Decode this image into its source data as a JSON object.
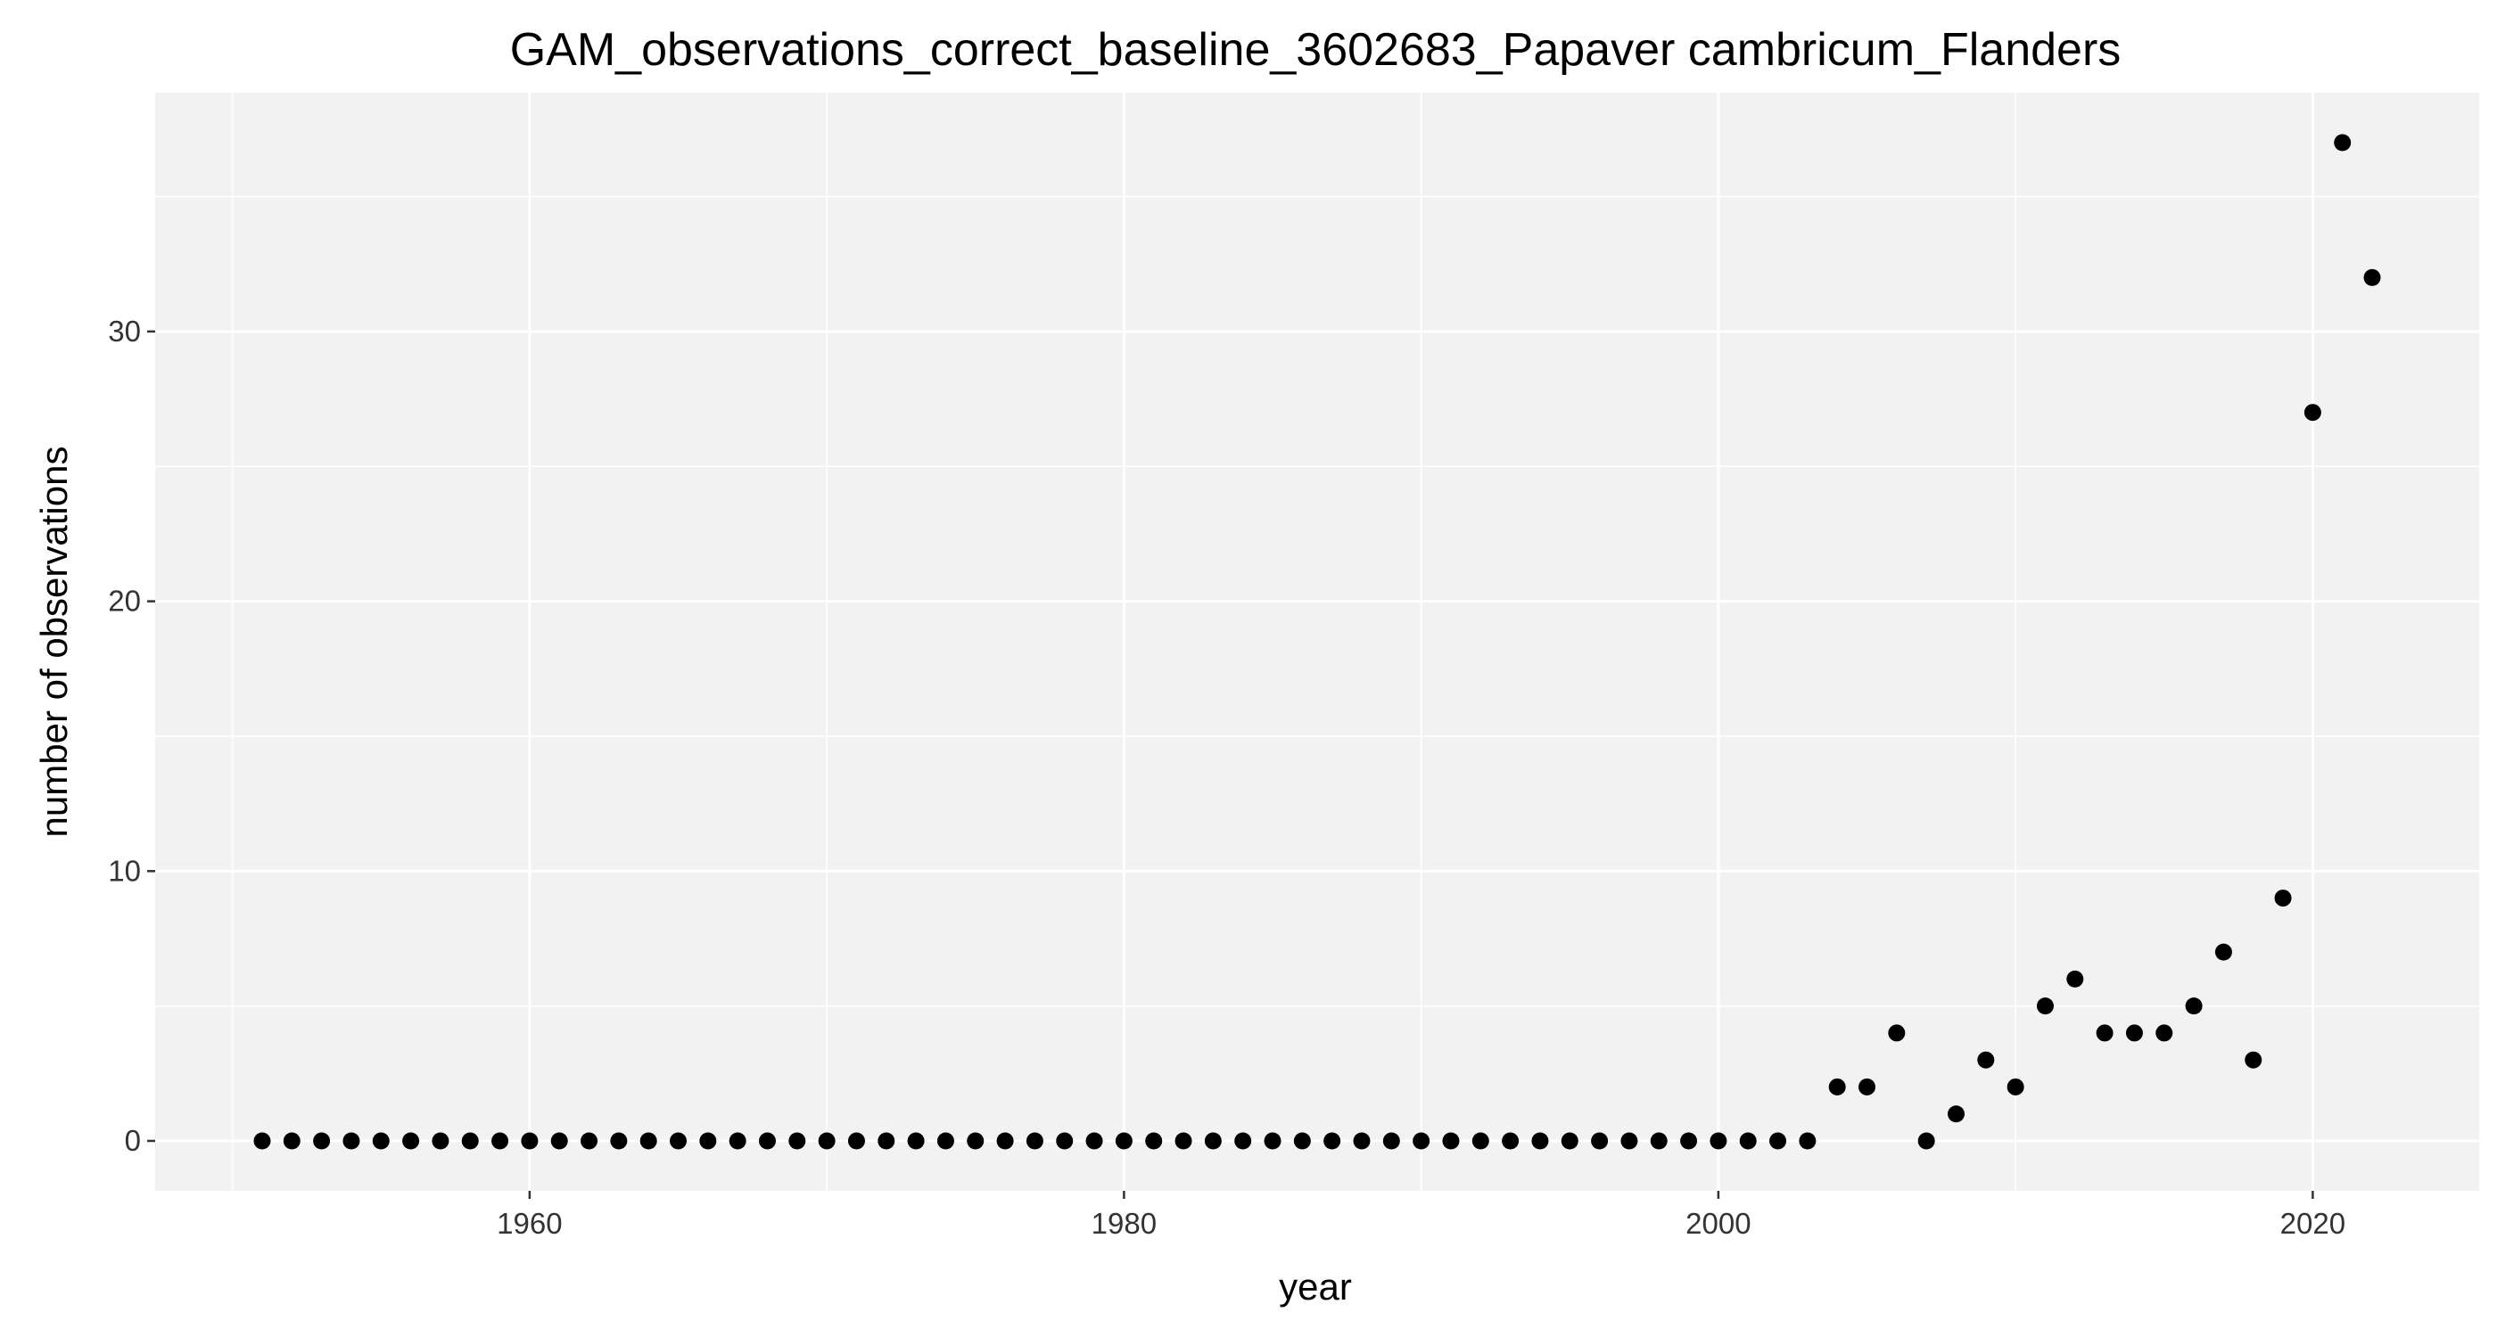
{
  "chart_data": {
    "type": "scatter",
    "title": "GAM_observations_correct_baseline_3602683_Papaver cambricum_Flanders",
    "xlabel": "year",
    "ylabel": "number of observations",
    "xlim": [
      1947.4,
      2025.6
    ],
    "ylim": [
      -1.85,
      38.85
    ],
    "x_ticks": [
      1960,
      1980,
      2000,
      2020
    ],
    "x_tick_labels": [
      "1960",
      "1980",
      "2000",
      "2020"
    ],
    "x_minor_ticks": [
      1950,
      1970,
      1990,
      2010
    ],
    "y_ticks": [
      0,
      10,
      20,
      30
    ],
    "y_tick_labels": [
      "0",
      "10",
      "20",
      "30"
    ],
    "y_minor_ticks": [
      5,
      15,
      25,
      35
    ],
    "grid": true,
    "legend": "none",
    "colors": {
      "panel": "#f2f2f2",
      "grid": "#ffffff",
      "point": "#000000"
    },
    "series": [
      {
        "x": [
          1951,
          1952,
          1953,
          1954,
          1955,
          1956,
          1957,
          1958,
          1959,
          1960,
          1961,
          1962,
          1963,
          1964,
          1965,
          1966,
          1967,
          1968,
          1969,
          1970,
          1971,
          1972,
          1973,
          1974,
          1975,
          1976,
          1977,
          1978,
          1979,
          1980,
          1981,
          1982,
          1983,
          1984,
          1985,
          1986,
          1987,
          1988,
          1989,
          1990,
          1991,
          1992,
          1993,
          1994,
          1995,
          1996,
          1997,
          1998,
          1999,
          2000,
          2001,
          2002,
          2003,
          2004,
          2005,
          2006,
          2007,
          2008,
          2009,
          2010,
          2011,
          2012,
          2013,
          2014,
          2015,
          2016,
          2017,
          2018,
          2019,
          2020,
          2021,
          2022
        ],
        "y": [
          0,
          0,
          0,
          0,
          0,
          0,
          0,
          0,
          0,
          0,
          0,
          0,
          0,
          0,
          0,
          0,
          0,
          0,
          0,
          0,
          0,
          0,
          0,
          0,
          0,
          0,
          0,
          0,
          0,
          0,
          0,
          0,
          0,
          0,
          0,
          0,
          0,
          0,
          0,
          0,
          0,
          0,
          0,
          0,
          0,
          0,
          0,
          0,
          0,
          0,
          0,
          0,
          0,
          2,
          2,
          4,
          0,
          1,
          3,
          2,
          5,
          6,
          4,
          4,
          4,
          5,
          7,
          3,
          9,
          27,
          37,
          32
        ]
      }
    ]
  }
}
